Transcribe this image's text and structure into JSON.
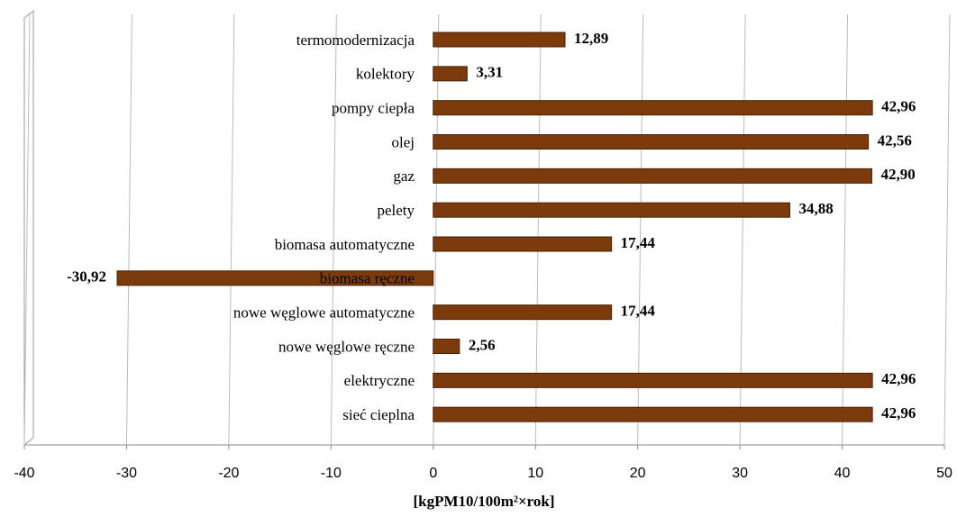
{
  "chart_data": {
    "type": "bar",
    "orientation": "horizontal",
    "categories": [
      "termomodernizacja",
      "kolektory",
      "pompy ciepła",
      "olej",
      "gaz",
      "pelety",
      "biomasa automatyczne",
      "biomasa ręczne",
      "nowe węglowe automatyczne",
      "nowe węglowe ręczne",
      "elektryczne",
      "sieć cieplna"
    ],
    "values": [
      12.89,
      3.31,
      42.96,
      42.56,
      42.9,
      34.88,
      17.44,
      -30.92,
      17.44,
      2.56,
      42.96,
      42.96
    ],
    "value_labels": [
      "12,89",
      "3,31",
      "42,96",
      "42,56",
      "42,90",
      "34,88",
      "17,44",
      "-30,92",
      "17,44",
      "2,56",
      "42,96",
      "42,96"
    ],
    "color": "#7b3b0c",
    "xlim": [
      -40,
      50
    ],
    "xticks": [
      -40,
      -30,
      -20,
      -10,
      0,
      10,
      20,
      30,
      40,
      50
    ],
    "xlabel": "[kgPM10/100m²×rok]",
    "grid": true
  }
}
